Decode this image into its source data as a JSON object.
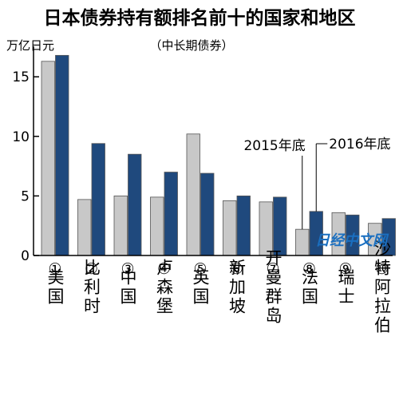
{
  "chart_data": {
    "type": "bar",
    "title": "日本债券持有额排名前十的国家和地区",
    "subtitle": "（中长期债券）",
    "ylabel": "万亿日元",
    "ylim": [
      0,
      17
    ],
    "yticks": [
      "0",
      "5",
      "10",
      "15"
    ],
    "grid": false,
    "categories": [
      {
        "num": "①",
        "name": "美国"
      },
      {
        "num": "②",
        "name": "比利时"
      },
      {
        "num": "③",
        "name": "中国"
      },
      {
        "num": "④",
        "name": "卢森堡"
      },
      {
        "num": "⑤",
        "name": "英国"
      },
      {
        "num": "⑥",
        "name": "新加坡"
      },
      {
        "num": "⑦",
        "name": "开曼群岛"
      },
      {
        "num": "⑧",
        "name": "法国"
      },
      {
        "num": "⑨",
        "name": "瑞士"
      },
      {
        "num": "⑩",
        "name": "沙特阿拉伯"
      }
    ],
    "series": [
      {
        "name": "2015年底",
        "color": "#c8c8c8",
        "values": [
          16.3,
          4.7,
          5.0,
          4.9,
          10.2,
          4.6,
          4.5,
          2.2,
          3.6,
          2.7
        ]
      },
      {
        "name": "2016年底",
        "color": "#1f497d",
        "values": [
          16.8,
          9.4,
          8.5,
          7.0,
          6.9,
          5.0,
          4.9,
          3.7,
          3.4,
          3.1
        ]
      }
    ]
  },
  "watermark": "日经中文网"
}
